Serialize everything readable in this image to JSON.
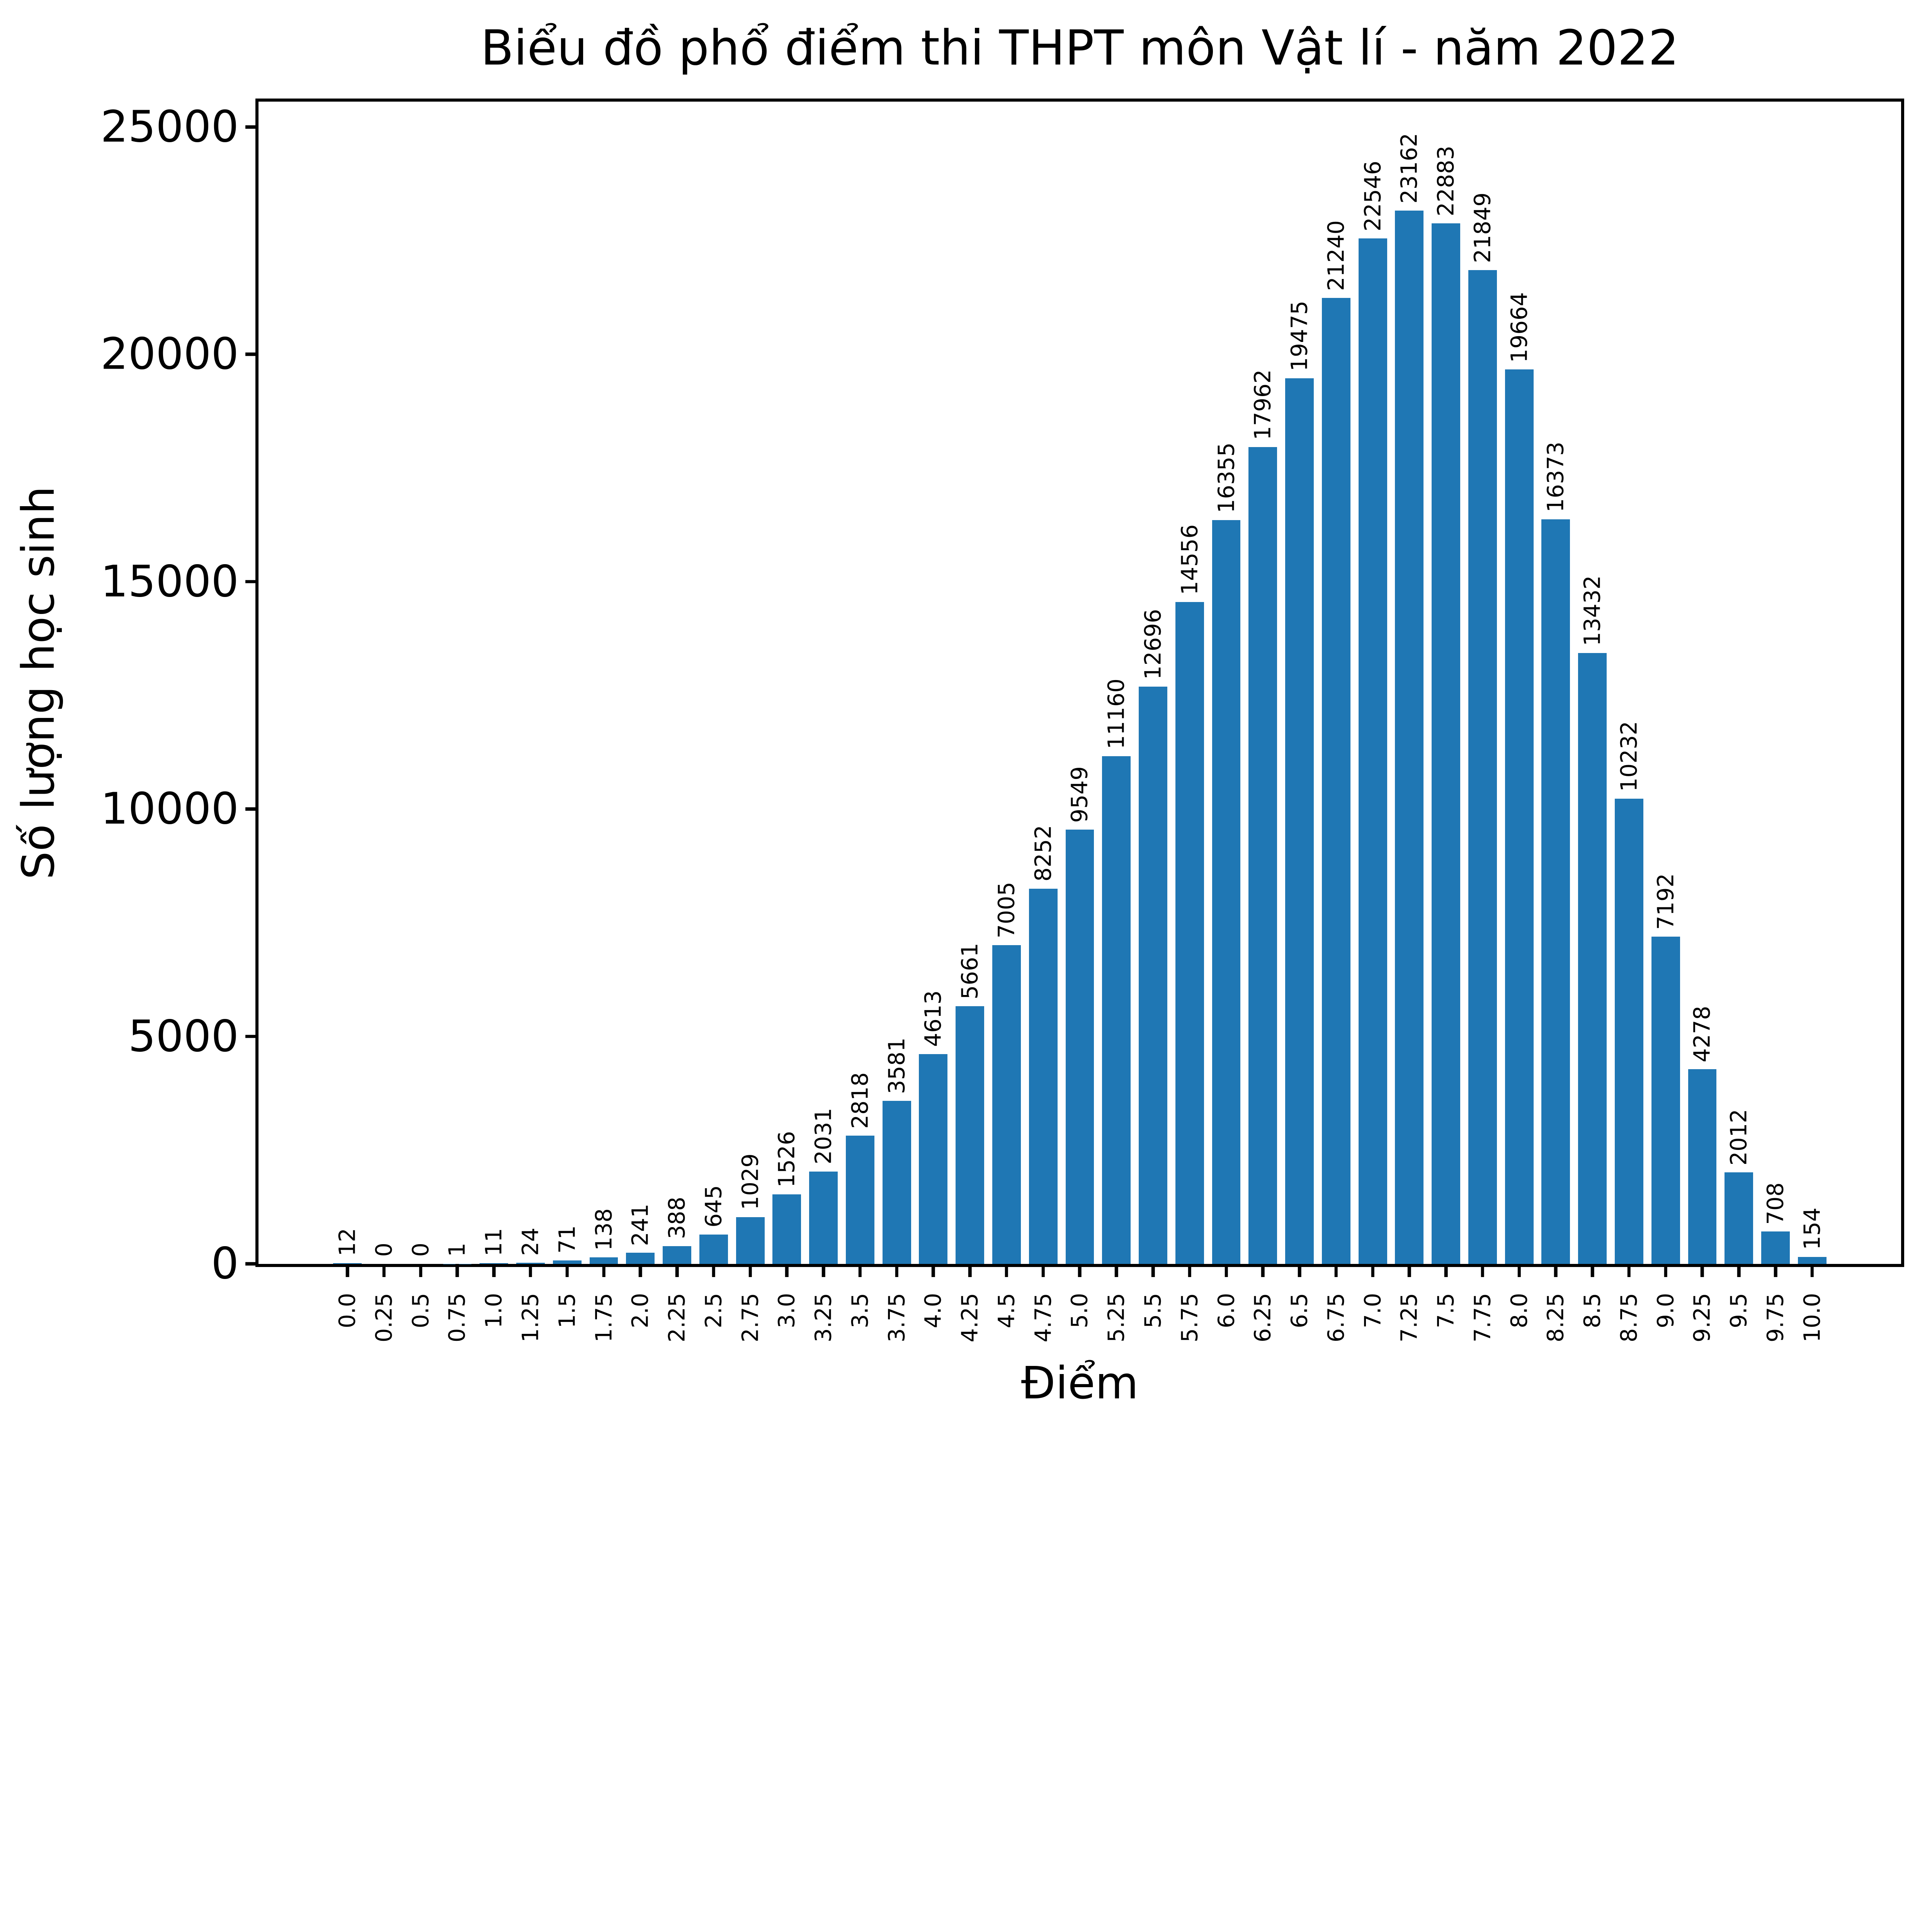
{
  "chart_data": {
    "type": "bar",
    "title": "Biểu đồ phổ điểm thi THPT môn Vật lí - năm 2022",
    "xlabel": "Điểm",
    "ylabel": "Số lượng học sinh",
    "categories": [
      "0.0",
      "0.25",
      "0.5",
      "0.75",
      "1.0",
      "1.25",
      "1.5",
      "1.75",
      "2.0",
      "2.25",
      "2.5",
      "2.75",
      "3.0",
      "3.25",
      "3.5",
      "3.75",
      "4.0",
      "4.25",
      "4.5",
      "4.75",
      "5.0",
      "5.25",
      "5.5",
      "5.75",
      "6.0",
      "6.25",
      "6.5",
      "6.75",
      "7.0",
      "7.25",
      "7.5",
      "7.75",
      "8.0",
      "8.25",
      "8.5",
      "8.75",
      "9.0",
      "9.25",
      "9.5",
      "9.75",
      "10.0"
    ],
    "values": [
      12,
      0,
      0,
      1,
      11,
      24,
      71,
      138,
      241,
      388,
      645,
      1029,
      1526,
      2031,
      2818,
      3581,
      4613,
      5661,
      7005,
      8252,
      9549,
      11160,
      12696,
      14556,
      16355,
      17962,
      19475,
      21240,
      22546,
      23162,
      22883,
      21849,
      19664,
      16373,
      13432,
      10232,
      7192,
      4278,
      2012,
      708,
      154
    ],
    "bar_value_labels": [
      "12",
      "0",
      "0",
      "1",
      "11",
      "24",
      "71",
      "138",
      "241",
      "388",
      "645",
      "1029",
      "1526",
      "2031",
      "2818",
      "3581",
      "4613",
      "5661",
      "7005",
      "8252",
      "9549",
      "11160",
      "12696",
      "14556",
      "16355",
      "17962",
      "19475",
      "21240",
      "22546",
      "23162",
      "22883",
      "21849",
      "19664",
      "16373",
      "13432",
      "10232",
      "7192",
      "4278",
      "2012",
      "708",
      "154"
    ],
    "ytick_values": [
      0,
      5000,
      10000,
      15000,
      20000,
      25000
    ],
    "ytick_labels": [
      "0",
      "5000",
      "10000",
      "15000",
      "20000",
      "25000"
    ],
    "ylim": [
      0,
      25560
    ],
    "bar_color": "#1f77b4",
    "grid": false,
    "legend": "none",
    "value_label_rotation": 90,
    "xtick_label_rotation": 90
  }
}
